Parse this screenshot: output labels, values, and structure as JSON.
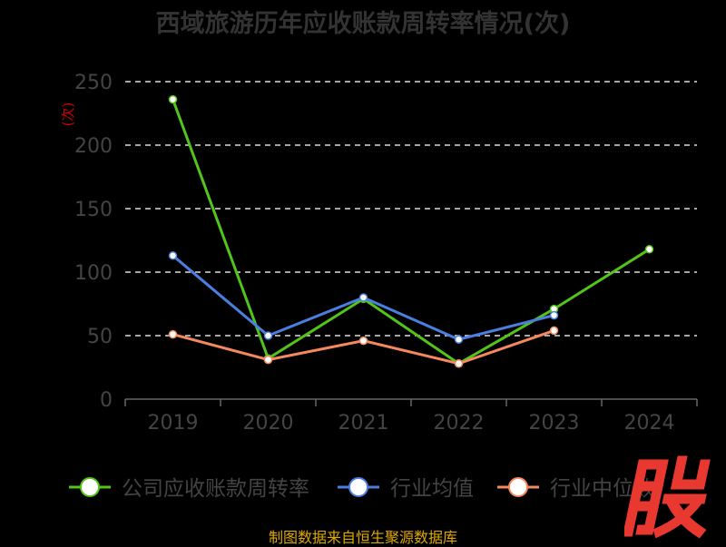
{
  "footer": {
    "source": "制图数据来自恒生聚源数据库"
  },
  "watermark": {
    "text": "股",
    "color": "#e8382f"
  },
  "chart_data": {
    "type": "line",
    "title": "西域旅游历年应收账款周转率情况(次)",
    "unit_label": "(次)",
    "categories": [
      "2019",
      "2020",
      "2021",
      "2022",
      "2023",
      "2024"
    ],
    "ylim": [
      0,
      250
    ],
    "yticks": [
      0,
      50,
      100,
      150,
      200,
      250
    ],
    "grid": "dashed-horizontal",
    "legend_position": "bottom",
    "series": [
      {
        "name": "公司应收账款周转率",
        "color": "#52c41a",
        "values": [
          236,
          32,
          79,
          28,
          71,
          118
        ]
      },
      {
        "name": "行业均值",
        "color": "#4a7fe0",
        "values": [
          113,
          50,
          80,
          47,
          66,
          null
        ]
      },
      {
        "name": "行业中位数",
        "color": "#f5885c",
        "values": [
          51,
          31,
          46,
          28,
          54,
          null
        ]
      }
    ]
  }
}
